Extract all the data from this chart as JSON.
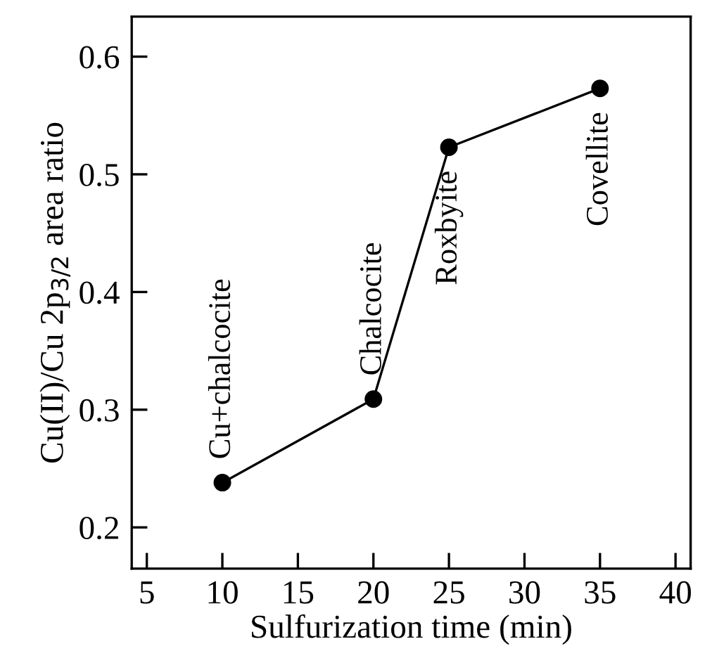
{
  "chart_data": {
    "type": "line",
    "x": [
      10,
      20,
      25,
      35
    ],
    "values": [
      0.238,
      0.309,
      0.523,
      0.573
    ],
    "color": "#000000",
    "marker": "circle",
    "line_style": "solid",
    "xlabel": "Sulfurization time (min)",
    "ylabel": "Cu(II)/Cu 2p$_{3/2}$ area ratio",
    "xlim": [
      4,
      41
    ],
    "ylim": [
      0.165,
      0.634
    ],
    "xticks": [
      5,
      10,
      15,
      20,
      25,
      30,
      35,
      40
    ],
    "yticks": [
      {
        "value": 0.2,
        "label": "0.2"
      },
      {
        "value": 0.3,
        "label": "0.3"
      },
      {
        "value": 0.4,
        "label": "0.4"
      },
      {
        "value": 0.5,
        "label": "0.5"
      },
      {
        "value": 0.6,
        "label": "0.6"
      }
    ],
    "annotations": [
      {
        "text": "Cu+chalcocite",
        "x": 10,
        "y": 0.238
      },
      {
        "text": "Chalcocite",
        "x": 20,
        "y": 0.309
      },
      {
        "text": "Roxbyite",
        "x": 25,
        "y": 0.523
      },
      {
        "text": "Covellite",
        "x": 35,
        "y": 0.573
      }
    ],
    "grid": false,
    "legend": false
  }
}
